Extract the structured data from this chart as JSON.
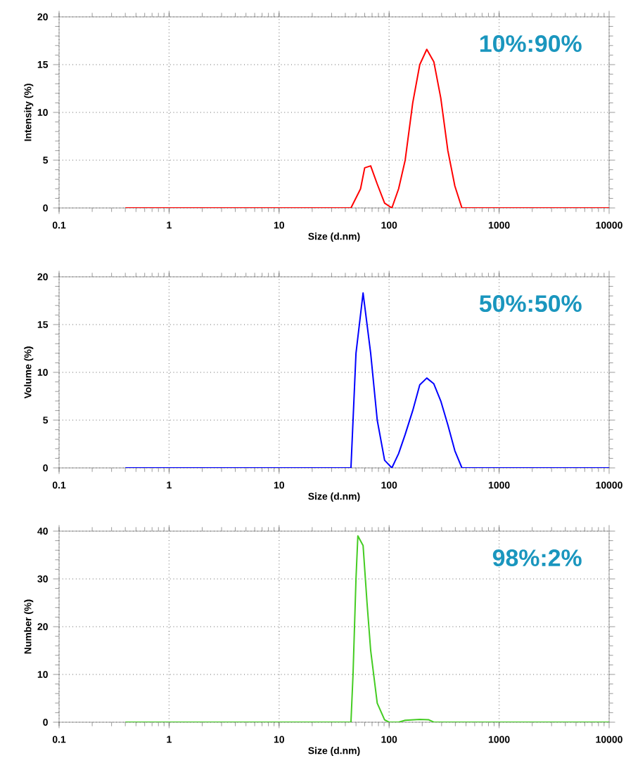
{
  "chart_data": [
    {
      "type": "line",
      "xlabel": "Size (d.nm)",
      "ylabel": "Intensity (%)",
      "annotations": [
        "10%:90%"
      ],
      "log": "x",
      "grid": true,
      "xlim": [
        0.1,
        10000
      ],
      "xticks": [
        0.1,
        1,
        10,
        100,
        1000,
        10000
      ],
      "ylim": [
        0,
        20
      ],
      "yticks": [
        0,
        5,
        10,
        15,
        20
      ],
      "series": [
        {
          "color": "#ff0000",
          "x": [
            0.4,
            45,
            55,
            60,
            68,
            78,
            91,
            106,
            122,
            140,
            164,
            190,
            220,
            255,
            295,
            342,
            396,
            459,
            10000
          ],
          "values": [
            0,
            0,
            2,
            4.2,
            4.4,
            2.5,
            0.5,
            0,
            2,
            5,
            11,
            15,
            16.6,
            15.3,
            11.5,
            6,
            2.3,
            0,
            0
          ]
        }
      ]
    },
    {
      "type": "line",
      "xlabel": "Size (d.nm)",
      "ylabel": "Volume (%)",
      "annotations": [
        "50%:50%"
      ],
      "log": "x",
      "grid": true,
      "xlim": [
        0.1,
        10000
      ],
      "xticks": [
        0.1,
        1,
        10,
        100,
        1000,
        10000
      ],
      "ylim": [
        0,
        20
      ],
      "yticks": [
        0,
        5,
        10,
        15,
        20
      ],
      "series": [
        {
          "color": "#0000ff",
          "x": [
            0.4,
            45,
            50,
            58,
            68,
            78,
            91,
            106,
            122,
            140,
            164,
            190,
            220,
            255,
            295,
            342,
            396,
            459,
            10000
          ],
          "values": [
            0,
            0,
            12,
            18.3,
            12,
            5,
            0.8,
            0,
            1.5,
            3.5,
            6,
            8.7,
            9.4,
            8.8,
            7,
            4.5,
            1.8,
            0,
            0
          ]
        }
      ]
    },
    {
      "type": "line",
      "xlabel": "Size (d.nm)",
      "ylabel": "Number (%)",
      "annotations": [
        "98%:2%"
      ],
      "log": "x",
      "grid": true,
      "xlim": [
        0.1,
        10000
      ],
      "xticks": [
        0.1,
        1,
        10,
        100,
        1000,
        10000
      ],
      "ylim": [
        0,
        40
      ],
      "yticks": [
        0,
        10,
        20,
        30,
        40
      ],
      "series": [
        {
          "color": "#44cc22",
          "x": [
            0.4,
            45,
            47,
            50,
            52,
            58,
            63,
            68,
            78,
            91,
            100,
            122,
            140,
            190,
            230,
            255,
            10000
          ],
          "values": [
            0,
            0,
            10,
            30,
            39,
            37,
            25,
            15,
            4,
            0.5,
            0,
            0,
            0.4,
            0.6,
            0.5,
            0,
            0
          ]
        }
      ]
    }
  ]
}
